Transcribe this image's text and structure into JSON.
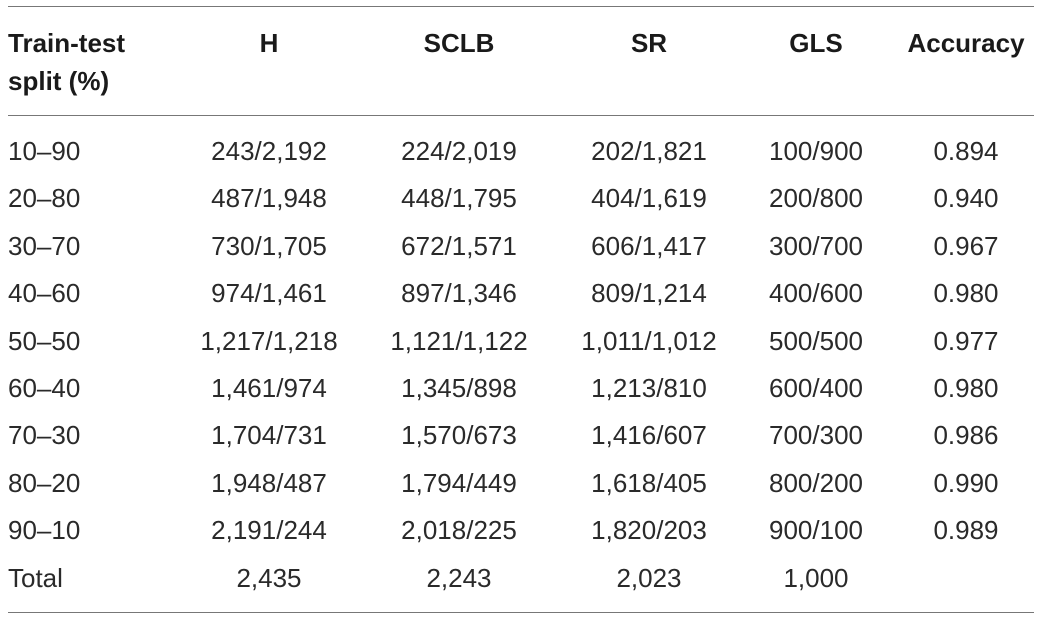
{
  "table": {
    "headers": {
      "split": "Train-test split (%)",
      "h": "H",
      "sclb": "SCLB",
      "sr": "SR",
      "gls": "GLS",
      "accuracy": "Accuracy"
    },
    "rows": [
      {
        "split": "10–90",
        "h": "243/2,192",
        "sclb": "224/2,019",
        "sr": "202/1,821",
        "gls": "100/900",
        "accuracy": "0.894"
      },
      {
        "split": "20–80",
        "h": "487/1,948",
        "sclb": "448/1,795",
        "sr": "404/1,619",
        "gls": "200/800",
        "accuracy": "0.940"
      },
      {
        "split": "30–70",
        "h": "730/1,705",
        "sclb": "672/1,571",
        "sr": "606/1,417",
        "gls": "300/700",
        "accuracy": "0.967"
      },
      {
        "split": "40–60",
        "h": "974/1,461",
        "sclb": "897/1,346",
        "sr": "809/1,214",
        "gls": "400/600",
        "accuracy": "0.980"
      },
      {
        "split": "50–50",
        "h": "1,217/1,218",
        "sclb": "1,121/1,122",
        "sr": "1,011/1,012",
        "gls": "500/500",
        "accuracy": "0.977"
      },
      {
        "split": "60–40",
        "h": "1,461/974",
        "sclb": "1,345/898",
        "sr": "1,213/810",
        "gls": "600/400",
        "accuracy": "0.980"
      },
      {
        "split": "70–30",
        "h": "1,704/731",
        "sclb": "1,570/673",
        "sr": "1,416/607",
        "gls": "700/300",
        "accuracy": "0.986"
      },
      {
        "split": "80–20",
        "h": "1,948/487",
        "sclb": "1,794/449",
        "sr": "1,618/405",
        "gls": "800/200",
        "accuracy": "0.990"
      },
      {
        "split": "90–10",
        "h": "2,191/244",
        "sclb": "2,018/225",
        "sr": "1,820/203",
        "gls": "900/100",
        "accuracy": "0.989"
      },
      {
        "split": "Total",
        "h": "2,435",
        "sclb": "2,243",
        "sr": "2,023",
        "gls": "1,000",
        "accuracy": ""
      }
    ]
  }
}
